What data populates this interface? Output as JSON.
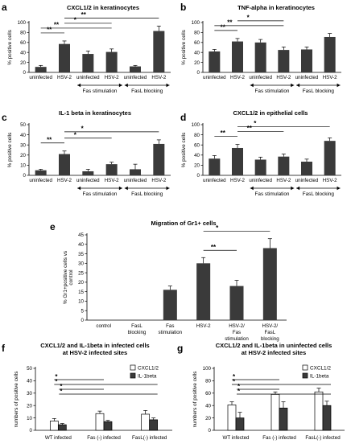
{
  "chart_data": [
    {
      "id": "a",
      "panel_label": "a",
      "type": "bar",
      "title": "CXCL1/2 in keratinocytes",
      "ylabel": "% positive cells",
      "ylim": [
        0,
        100
      ],
      "yticks": [
        0,
        20,
        40,
        60,
        80,
        100
      ],
      "categories": [
        "uninfected",
        "HSV-2",
        "uninfected",
        "HSV-2",
        "uninfected",
        "HSV-2"
      ],
      "values": [
        11,
        57,
        37,
        41,
        12,
        83
      ],
      "errors": [
        3,
        6,
        6,
        6,
        2,
        10
      ],
      "groups": [
        {
          "label": "Fas stimulation",
          "from": 2,
          "to": 3
        },
        {
          "label": "FasL blocking",
          "from": 4,
          "to": 5
        }
      ],
      "significance": [
        {
          "from": 0,
          "to": 1,
          "label": "**"
        },
        {
          "from": 0,
          "to": 3,
          "label": "**"
        },
        {
          "from": 1,
          "to": 3,
          "label": "*"
        },
        {
          "from": 1,
          "to": 5,
          "label": "**"
        }
      ]
    },
    {
      "id": "b",
      "panel_label": "b",
      "type": "bar",
      "title": "TNF-alpha in keratinocytes",
      "ylabel": "% positive cells",
      "ylim": [
        0,
        100
      ],
      "yticks": [
        0,
        20,
        40,
        60,
        80,
        100
      ],
      "categories": [
        "uninfected",
        "HSV-2",
        "uninfected",
        "HSV-2",
        "uninfected",
        "HSV-2"
      ],
      "values": [
        42,
        62,
        60,
        45,
        46,
        71
      ],
      "errors": [
        4,
        6,
        6,
        6,
        5,
        7
      ],
      "groups": [
        {
          "label": "Fas stimulation",
          "from": 2,
          "to": 3
        },
        {
          "label": "FasL blocking",
          "from": 4,
          "to": 5
        }
      ],
      "significance": [
        {
          "from": 0,
          "to": 1,
          "label": "**"
        },
        {
          "from": 0,
          "to": 3,
          "label": "**"
        },
        {
          "from": 1,
          "to": 3,
          "label": "*"
        }
      ]
    },
    {
      "id": "c",
      "panel_label": "c",
      "type": "bar",
      "title": "IL-1 beta in keratinocytes",
      "ylabel": "% positive cells",
      "ylim": [
        0,
        50
      ],
      "yticks": [
        0,
        10,
        20,
        30,
        40,
        50
      ],
      "categories": [
        "uninfected",
        "HSV-2",
        "uninfected",
        "HSV-2",
        "uninfected",
        "HSV-2"
      ],
      "values": [
        5,
        21,
        4,
        11,
        6,
        31
      ],
      "errors": [
        1,
        3,
        2,
        2,
        5,
        4
      ],
      "groups": [
        {
          "label": "Fas stimulation",
          "from": 2,
          "to": 3
        },
        {
          "label": "FasL blocking",
          "from": 4,
          "to": 5
        }
      ],
      "significance": [
        {
          "from": 0,
          "to": 1,
          "label": "**"
        },
        {
          "from": 1,
          "to": 3,
          "label": "*"
        },
        {
          "from": 1,
          "to": 5,
          "label": "*"
        }
      ]
    },
    {
      "id": "d",
      "panel_label": "d",
      "type": "bar",
      "title": "CXCL1/2 in epithelial cells",
      "ylabel": "% positive cells",
      "ylim": [
        0,
        100
      ],
      "yticks": [
        0,
        20,
        40,
        60,
        80,
        100
      ],
      "categories": [
        "uninfected",
        "HSV-2",
        "uninfected",
        "HSV-2",
        "uninfected",
        "HSV-2"
      ],
      "values": [
        33,
        54,
        31,
        37,
        27,
        68
      ],
      "errors": [
        6,
        7,
        5,
        5,
        5,
        6
      ],
      "groups": [
        {
          "label": "Fas stimulation",
          "from": 2,
          "to": 3
        },
        {
          "label": "FasL blocking",
          "from": 4,
          "to": 5
        }
      ],
      "significance": [
        {
          "from": 0,
          "to": 1,
          "label": "**"
        },
        {
          "from": 1,
          "to": 3,
          "label": "**"
        },
        {
          "from": 1,
          "to": 5,
          "label": "*"
        }
      ]
    },
    {
      "id": "e",
      "panel_label": "e",
      "type": "bar",
      "title": "Migration of Gr1+ cells",
      "ylabel": "% Gr1+positive cells vs control",
      "ylim": [
        0,
        45
      ],
      "yticks": [
        0,
        5,
        10,
        15,
        20,
        25,
        30,
        35,
        40,
        45
      ],
      "categories": [
        "control",
        "FasL blocking",
        "Fas stimulation",
        "HSV-2",
        "HSV-2/ Fas stimulation",
        "HSV-2/ FasL blocking"
      ],
      "values": [
        0,
        0,
        16,
        30,
        18,
        38
      ],
      "errors": [
        0,
        0,
        2,
        3,
        3,
        5
      ],
      "significance": [
        {
          "from": 3,
          "to": 4,
          "label": "**"
        },
        {
          "from": 3,
          "to": 5,
          "label": "*"
        }
      ]
    },
    {
      "id": "f",
      "panel_label": "f",
      "type": "bar",
      "title": "CXCL1/2 and IL-1beta in infected cells at HSV-2 infected sites",
      "ylabel": "numbers of positive cells",
      "ylim": [
        0,
        50
      ],
      "yticks": [
        0,
        10,
        20,
        30,
        40,
        50
      ],
      "categories": [
        "WT infected",
        "Fas (-) infected",
        "FasL(-) infected"
      ],
      "series": [
        {
          "name": "CXCL1/2",
          "values": [
            7.5,
            13.5,
            13
          ],
          "errors": [
            2,
            2,
            3
          ]
        },
        {
          "name": "IL-1beta",
          "values": [
            4.5,
            7,
            8.5
          ],
          "errors": [
            1,
            1,
            1.5
          ]
        }
      ],
      "legend": "top-right",
      "significance": [
        {
          "from": 0,
          "to": 1,
          "label": "*"
        },
        {
          "from": 0,
          "to": 2,
          "label": "*"
        },
        {
          "from": 0,
          "to": 1,
          "label": "*"
        },
        {
          "from": 0,
          "to": 2,
          "label": "*"
        }
      ]
    },
    {
      "id": "g",
      "panel_label": "g",
      "type": "bar",
      "title": "CXCL1/2 and IL-1beta in uninfected cells at HSV-2 infected sites",
      "ylabel": "numbers of positive cells",
      "ylim": [
        0,
        100
      ],
      "yticks": [
        0,
        20,
        40,
        60,
        80,
        100
      ],
      "categories": [
        "WT infected",
        "Fas (-) infected",
        "FasL(-) infected"
      ],
      "series": [
        {
          "name": "CXCL1/2",
          "values": [
            41,
            58,
            62
          ],
          "errors": [
            5,
            4,
            6
          ]
        },
        {
          "name": "IL-1beta",
          "values": [
            20,
            36,
            40
          ],
          "errors": [
            9,
            10,
            7
          ]
        }
      ],
      "legend": "top-right",
      "significance": [
        {
          "from": 0,
          "to": 1,
          "label": "*"
        },
        {
          "from": 0,
          "to": 2,
          "label": "*"
        },
        {
          "from": 0,
          "to": 1,
          "label": "*"
        },
        {
          "from": 0,
          "to": 2,
          "label": "*"
        }
      ]
    }
  ]
}
